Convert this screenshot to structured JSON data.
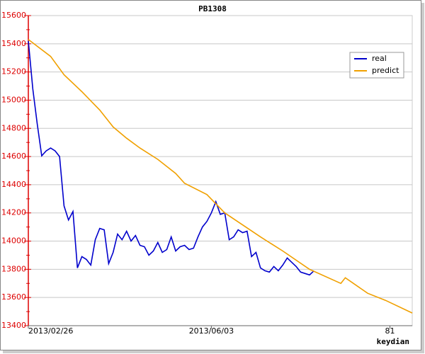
{
  "chart_data": {
    "type": "line",
    "title": "PB1308",
    "x_label": "keydian",
    "xlim": [
      0,
      86
    ],
    "xticks": [
      {
        "value": 0,
        "label": "2013/02/26"
      },
      {
        "value": 41,
        "label": "2013/06/03"
      },
      {
        "value": 81,
        "label": "81"
      }
    ],
    "ylim": [
      13400,
      15600
    ],
    "yticks": [
      13400,
      13600,
      13800,
      14000,
      14200,
      14400,
      14600,
      14800,
      15000,
      15200,
      15400,
      15600
    ],
    "grid": true,
    "legend": "upper right",
    "axis_color": "#dd0000",
    "series": [
      {
        "name": "real",
        "color": "#0000cc",
        "x": [
          0,
          1,
          2,
          3,
          4,
          5,
          6,
          7,
          8,
          9,
          10,
          11,
          12,
          13,
          14,
          15,
          16,
          17,
          18,
          19,
          20,
          21,
          22,
          23,
          24,
          25,
          26,
          27,
          28,
          29,
          30,
          31,
          32,
          33,
          34,
          35,
          36,
          37,
          38,
          39,
          40,
          41,
          42,
          43,
          44,
          45,
          46,
          47,
          48,
          49,
          50,
          51,
          52,
          53,
          54,
          55,
          56,
          57,
          58,
          59,
          60,
          61,
          62,
          63,
          64
        ],
        "values": [
          15420,
          15080,
          14830,
          14605,
          14640,
          14660,
          14640,
          14600,
          14250,
          14150,
          14210,
          13810,
          13890,
          13870,
          13830,
          14010,
          14090,
          14080,
          13840,
          13920,
          14050,
          14010,
          14070,
          14000,
          14040,
          13970,
          13960,
          13900,
          13930,
          13990,
          13920,
          13940,
          14030,
          13930,
          13960,
          13970,
          13940,
          13950,
          14030,
          14100,
          14140,
          14200,
          14280,
          14190,
          14200,
          14010,
          14030,
          14080,
          14060,
          14070,
          13890,
          13920,
          13810,
          13790,
          13780,
          13820,
          13790,
          13830,
          13880,
          13850,
          13820,
          13780,
          13770,
          13760,
          13790
        ]
      },
      {
        "name": "predict",
        "color": "#f0a000",
        "x": [
          0,
          5,
          8,
          12,
          16,
          19,
          22,
          25,
          29,
          33,
          35,
          40,
          44,
          52,
          57,
          63,
          70,
          71,
          76,
          80,
          86
        ],
        "values": [
          15430,
          15310,
          15180,
          15060,
          14930,
          14810,
          14730,
          14660,
          14580,
          14480,
          14410,
          14330,
          14200,
          14030,
          13930,
          13800,
          13700,
          13740,
          13630,
          13580,
          13490
        ]
      }
    ]
  }
}
